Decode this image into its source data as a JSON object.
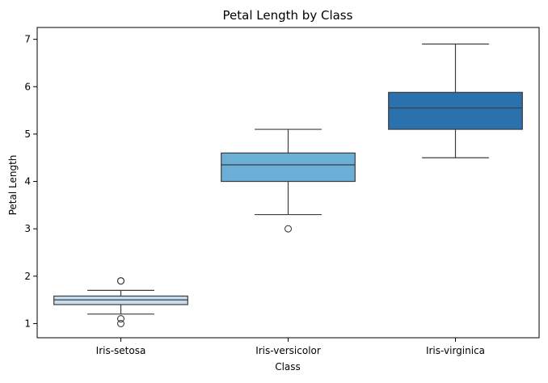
{
  "chart_data": {
    "type": "box",
    "title": "Petal Length by Class",
    "xlabel": "Class",
    "ylabel": "Petal Length",
    "ylim": [
      0.7,
      7.25
    ],
    "yticks": [
      1,
      2,
      3,
      4,
      5,
      6,
      7
    ],
    "grid": false,
    "categories": [
      "Iris-setosa",
      "Iris-versicolor",
      "Iris-virginica"
    ],
    "boxes": [
      {
        "category": "Iris-setosa",
        "whisker_low": 1.2,
        "q1": 1.4,
        "median": 1.5,
        "q3": 1.58,
        "whisker_high": 1.7,
        "outliers": [
          1.0,
          1.1,
          1.9,
          1.9
        ],
        "color": "#c6dbef"
      },
      {
        "category": "Iris-versicolor",
        "whisker_low": 3.3,
        "q1": 4.0,
        "median": 4.35,
        "q3": 4.6,
        "whisker_high": 5.1,
        "outliers": [
          3.0
        ],
        "color": "#6baed6"
      },
      {
        "category": "Iris-virginica",
        "whisker_low": 4.5,
        "q1": 5.1,
        "median": 5.55,
        "q3": 5.88,
        "whisker_high": 6.9,
        "outliers": [],
        "color": "#2b71ae"
      }
    ]
  }
}
